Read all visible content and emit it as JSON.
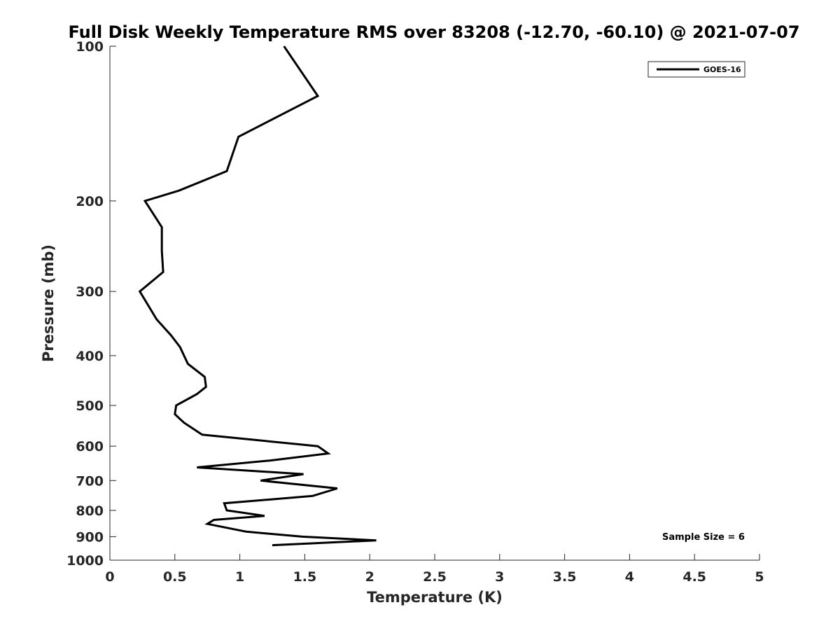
{
  "chart_data": {
    "type": "line",
    "title": "Full Disk Weekly Temperature RMS over 83208 (-12.70, -60.10) @ 2021-07-07",
    "xlabel": "Temperature (K)",
    "ylabel": "Pressure (mb)",
    "xlim": [
      0,
      5
    ],
    "ylim": [
      100,
      1000
    ],
    "y_scale": "log",
    "y_reversed": true,
    "x_ticks": [
      0,
      0.5,
      1,
      1.5,
      2,
      2.5,
      3,
      3.5,
      4,
      4.5,
      5
    ],
    "x_tick_labels": [
      "0",
      "0.5",
      "1",
      "1.5",
      "2",
      "2.5",
      "3",
      "3.5",
      "4",
      "4.5",
      "5"
    ],
    "y_ticks": [
      100,
      200,
      300,
      400,
      500,
      600,
      700,
      800,
      900,
      1000
    ],
    "y_tick_labels": [
      "100",
      "200",
      "300",
      "400",
      "500",
      "600",
      "700",
      "800",
      "900",
      "1000"
    ],
    "grid": false,
    "legend_position": "top-right",
    "annotation": "Sample Size = 6",
    "series": [
      {
        "name": "GOES-16",
        "color": "#000000",
        "points": [
          {
            "x": 1.34,
            "p": 100
          },
          {
            "x": 1.6,
            "p": 125
          },
          {
            "x": 0.99,
            "p": 150
          },
          {
            "x": 0.9,
            "p": 175
          },
          {
            "x": 0.53,
            "p": 191
          },
          {
            "x": 0.27,
            "p": 200
          },
          {
            "x": 0.4,
            "p": 225
          },
          {
            "x": 0.4,
            "p": 250
          },
          {
            "x": 0.41,
            "p": 275
          },
          {
            "x": 0.23,
            "p": 300
          },
          {
            "x": 0.36,
            "p": 340
          },
          {
            "x": 0.47,
            "p": 365
          },
          {
            "x": 0.54,
            "p": 385
          },
          {
            "x": 0.6,
            "p": 415
          },
          {
            "x": 0.73,
            "p": 440
          },
          {
            "x": 0.74,
            "p": 460
          },
          {
            "x": 0.67,
            "p": 475
          },
          {
            "x": 0.51,
            "p": 500
          },
          {
            "x": 0.5,
            "p": 520
          },
          {
            "x": 0.57,
            "p": 540
          },
          {
            "x": 0.71,
            "p": 570
          },
          {
            "x": 1.6,
            "p": 600
          },
          {
            "x": 1.68,
            "p": 620
          },
          {
            "x": 1.23,
            "p": 640
          },
          {
            "x": 0.67,
            "p": 660
          },
          {
            "x": 1.49,
            "p": 680
          },
          {
            "x": 1.16,
            "p": 700
          },
          {
            "x": 1.75,
            "p": 725
          },
          {
            "x": 1.56,
            "p": 750
          },
          {
            "x": 0.88,
            "p": 775
          },
          {
            "x": 0.9,
            "p": 800
          },
          {
            "x": 1.19,
            "p": 820
          },
          {
            "x": 0.8,
            "p": 835
          },
          {
            "x": 0.75,
            "p": 850
          },
          {
            "x": 1.05,
            "p": 880
          },
          {
            "x": 1.48,
            "p": 900
          },
          {
            "x": 2.05,
            "p": 915
          },
          {
            "x": 1.25,
            "p": 935
          }
        ]
      }
    ]
  }
}
